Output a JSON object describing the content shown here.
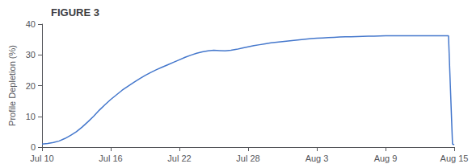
{
  "chart_data": {
    "type": "line",
    "title": "FIGURE 3",
    "ylabel": "Profile Depletion (%)",
    "color": "#4477CC",
    "x": [
      0,
      0.5,
      1,
      1.5,
      2,
      2.5,
      3,
      3.5,
      4,
      4.5,
      5,
      5.5,
      6,
      6.5,
      7,
      7.5,
      8,
      8.5,
      9,
      9.5,
      10,
      10.5,
      11,
      11.5,
      12,
      12.5,
      13,
      13.5,
      14,
      14.5,
      15,
      15.5,
      16,
      16.5,
      17,
      17.5,
      18,
      18.5,
      19,
      19.5,
      20,
      20.5,
      21,
      21.5,
      22,
      22.5,
      23,
      23.5,
      24,
      24.5,
      25,
      25.5,
      26,
      26.5,
      27,
      27.5,
      28,
      28.5,
      29,
      29.5,
      30,
      30.5,
      31,
      31.5,
      32,
      32.5,
      33,
      33.5,
      34,
      34.5,
      35,
      35.5,
      35.85,
      36
    ],
    "values": [
      1.0,
      1.2,
      1.5,
      2.0,
      2.8,
      3.8,
      5.0,
      6.5,
      8.2,
      10.0,
      12.0,
      13.8,
      15.5,
      17.0,
      18.5,
      19.8,
      21.0,
      22.2,
      23.3,
      24.3,
      25.2,
      26.0,
      26.8,
      27.6,
      28.4,
      29.2,
      29.9,
      30.5,
      31.0,
      31.3,
      31.5,
      31.4,
      31.3,
      31.5,
      31.8,
      32.2,
      32.6,
      33.0,
      33.3,
      33.6,
      33.9,
      34.1,
      34.3,
      34.5,
      34.7,
      34.9,
      35.1,
      35.3,
      35.4,
      35.5,
      35.6,
      35.7,
      35.8,
      35.85,
      35.9,
      35.95,
      36.0,
      36.05,
      36.1,
      36.15,
      36.2,
      36.2,
      36.2,
      36.2,
      36.2,
      36.2,
      36.2,
      36.2,
      36.2,
      36.2,
      36.2,
      36.2,
      1.0,
      0.8
    ],
    "xlim": [
      0,
      36
    ],
    "xticks": [
      {
        "value": 0,
        "label": "Jul 10"
      },
      {
        "value": 6,
        "label": "Jul 16"
      },
      {
        "value": 12,
        "label": "Jul 22"
      },
      {
        "value": 18,
        "label": "Jul 28"
      },
      {
        "value": 24,
        "label": "Aug 3"
      },
      {
        "value": 30,
        "label": "Aug 9"
      },
      {
        "value": 36,
        "label": "Aug 15"
      }
    ],
    "ylim": [
      0,
      40
    ],
    "yticks": [
      0,
      10,
      20,
      30,
      40
    ],
    "grid": false
  }
}
